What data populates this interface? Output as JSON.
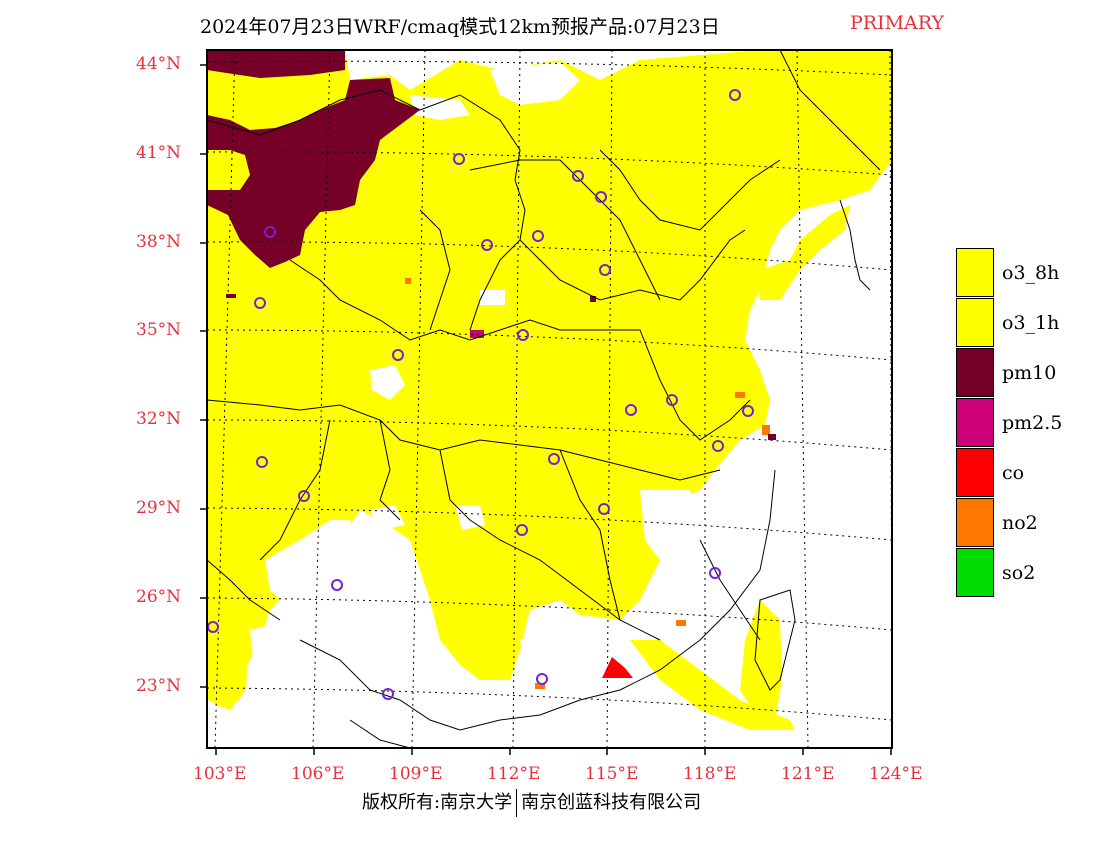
{
  "header": {
    "title": "2024年07月23日WRF/cmaq模式12km预报产品:07月23日",
    "tag": "PRIMARY"
  },
  "map": {
    "lat_labels": [
      "44°N",
      "41°N",
      "38°N",
      "35°N",
      "32°N",
      "29°N",
      "26°N",
      "23°N"
    ],
    "lon_labels": [
      "103°E",
      "106°E",
      "109°E",
      "112°E",
      "115°E",
      "118°E",
      "121°E",
      "124°E"
    ],
    "colors": {
      "o3_8h": "#ffff00",
      "o3_1h": "#ffff00",
      "pm10": "#760028",
      "pm2_5": "#cc0077",
      "co": "#ff0000",
      "no2": "#ff7700",
      "so2": "#00dd00",
      "station": "#7722cc",
      "label": "#e8303a"
    }
  },
  "legend": {
    "items": [
      {
        "label": "o3_8h",
        "color": "#ffff00"
      },
      {
        "label": "o3_1h",
        "color": "#ffff00"
      },
      {
        "label": "pm10",
        "color": "#760028"
      },
      {
        "label": "pm2.5",
        "color": "#cc0077"
      },
      {
        "label": "co",
        "color": "#ff0000"
      },
      {
        "label": "no2",
        "color": "#ff7700"
      },
      {
        "label": "so2",
        "color": "#00dd00"
      }
    ]
  },
  "footer": {
    "left": "版权所有:南京大学",
    "right": "南京创蓝科技有限公司"
  }
}
